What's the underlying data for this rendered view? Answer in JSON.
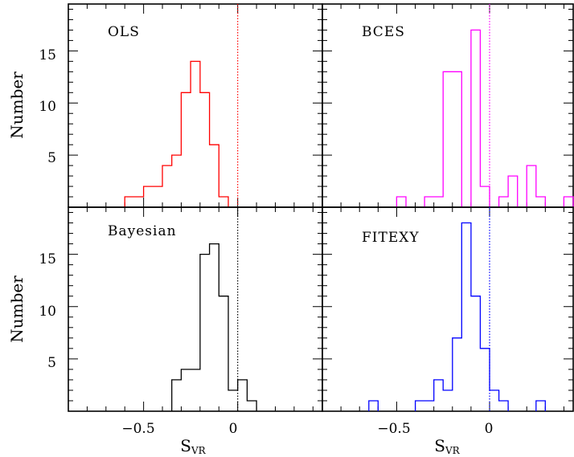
{
  "chart_data": [
    {
      "type": "bar",
      "subtype": "step-histogram",
      "label": "OLS",
      "color": "#ff0000",
      "xlim": [
        -0.9,
        0.45
      ],
      "ylim": [
        0,
        19.5
      ],
      "bin_width": 0.05,
      "marker_line_x": 0,
      "marker_line_style": "dotted",
      "bins": [
        {
          "x": -0.6,
          "y": 1
        },
        {
          "x": -0.55,
          "y": 1
        },
        {
          "x": -0.5,
          "y": 2
        },
        {
          "x": -0.45,
          "y": 2
        },
        {
          "x": -0.4,
          "y": 4
        },
        {
          "x": -0.35,
          "y": 5
        },
        {
          "x": -0.3,
          "y": 11
        },
        {
          "x": -0.25,
          "y": 14
        },
        {
          "x": -0.2,
          "y": 11
        },
        {
          "x": -0.15,
          "y": 6
        },
        {
          "x": -0.1,
          "y": 1
        }
      ]
    },
    {
      "type": "bar",
      "subtype": "step-histogram",
      "label": "BCES",
      "color": "#ff00ff",
      "xlim": [
        -0.9,
        0.45
      ],
      "ylim": [
        0,
        19.5
      ],
      "bin_width": 0.05,
      "marker_line_x": 0,
      "marker_line_style": "dotted",
      "bins": [
        {
          "x": -0.5,
          "y": 1
        },
        {
          "x": -0.35,
          "y": 1
        },
        {
          "x": -0.3,
          "y": 1
        },
        {
          "x": -0.25,
          "y": 13
        },
        {
          "x": -0.2,
          "y": 13
        },
        {
          "x": -0.1,
          "y": 17
        },
        {
          "x": -0.05,
          "y": 2
        },
        {
          "x": 0.05,
          "y": 1
        },
        {
          "x": 0.1,
          "y": 3
        },
        {
          "x": 0.2,
          "y": 4
        },
        {
          "x": 0.25,
          "y": 1
        },
        {
          "x": 0.4,
          "y": 1
        }
      ]
    },
    {
      "type": "bar",
      "subtype": "step-histogram",
      "label": "Bayesian",
      "color": "#000000",
      "xlim": [
        -0.9,
        0.45
      ],
      "ylim": [
        0,
        19.5
      ],
      "bin_width": 0.05,
      "marker_line_x": 0,
      "marker_line_style": "dotted",
      "bins": [
        {
          "x": -0.35,
          "y": 3
        },
        {
          "x": -0.3,
          "y": 4
        },
        {
          "x": -0.25,
          "y": 4
        },
        {
          "x": -0.2,
          "y": 15
        },
        {
          "x": -0.15,
          "y": 16
        },
        {
          "x": -0.1,
          "y": 11
        },
        {
          "x": -0.05,
          "y": 2
        },
        {
          "x": 0.0,
          "y": 3
        },
        {
          "x": 0.05,
          "y": 1
        }
      ]
    },
    {
      "type": "bar",
      "subtype": "step-histogram",
      "label": "FITEXY",
      "color": "#0000ff",
      "xlim": [
        -0.9,
        0.45
      ],
      "ylim": [
        0,
        19.5
      ],
      "bin_width": 0.05,
      "marker_line_x": 0,
      "marker_line_style": "dotted",
      "bins": [
        {
          "x": -0.65,
          "y": 1
        },
        {
          "x": -0.4,
          "y": 1
        },
        {
          "x": -0.35,
          "y": 1
        },
        {
          "x": -0.3,
          "y": 3
        },
        {
          "x": -0.25,
          "y": 2
        },
        {
          "x": -0.2,
          "y": 7
        },
        {
          "x": -0.15,
          "y": 18
        },
        {
          "x": -0.1,
          "y": 11
        },
        {
          "x": -0.05,
          "y": 6
        },
        {
          "x": 0.0,
          "y": 2
        },
        {
          "x": 0.05,
          "y": 1
        },
        {
          "x": 0.25,
          "y": 1
        }
      ]
    }
  ],
  "axes": {
    "ylabel": "Number",
    "xlabel_main": "S",
    "xlabel_sub": "VR",
    "y_ticks": [
      "5",
      "10",
      "15"
    ],
    "x_ticks": [
      "−0.5",
      "0"
    ]
  }
}
